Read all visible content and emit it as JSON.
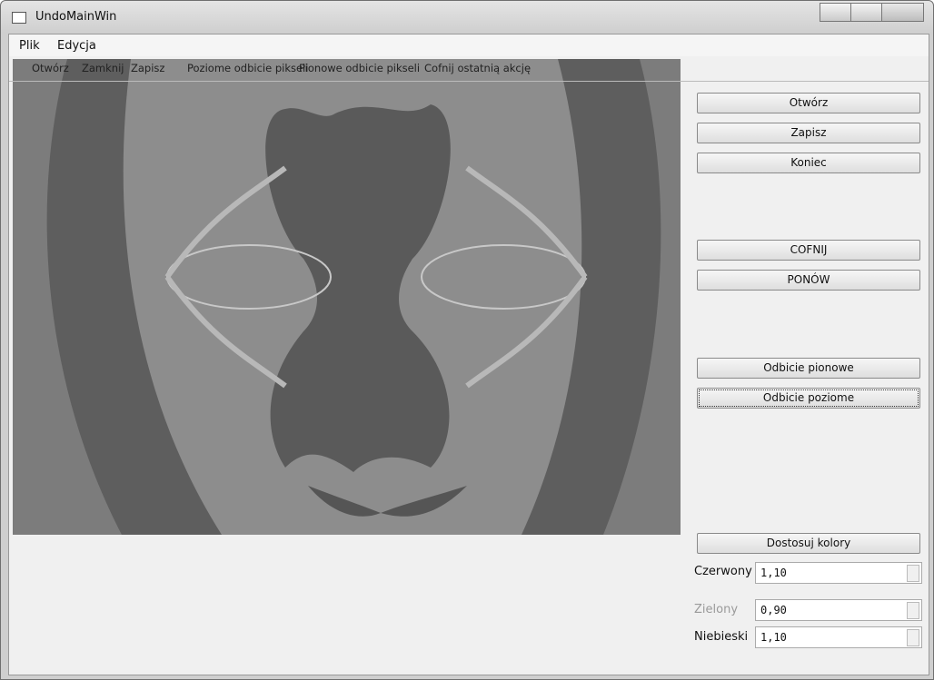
{
  "window": {
    "title": "UndoMainWin"
  },
  "menu": [
    "Plik",
    "Edycja"
  ],
  "toolbar": [
    "Otwórz",
    "Zamknij",
    "Zapisz",
    "Poziome odbicie pikseli",
    "Pionowe odbicie pikseli",
    "Cofnij ostatnią akcję"
  ],
  "buttons": [
    "Otwórz",
    "Zapisz",
    "Koniec",
    "COFNIJ",
    "PONÓW",
    "Odbicie pionowe",
    "Odbicie poziome",
    "Dostosuj kolory"
  ],
  "spinboxes": [
    {
      "label": "Czerwony",
      "value": "1,10"
    },
    {
      "label": "Zielony",
      "value": "0,90"
    },
    {
      "label": "Niebieski",
      "value": "1,10"
    }
  ]
}
